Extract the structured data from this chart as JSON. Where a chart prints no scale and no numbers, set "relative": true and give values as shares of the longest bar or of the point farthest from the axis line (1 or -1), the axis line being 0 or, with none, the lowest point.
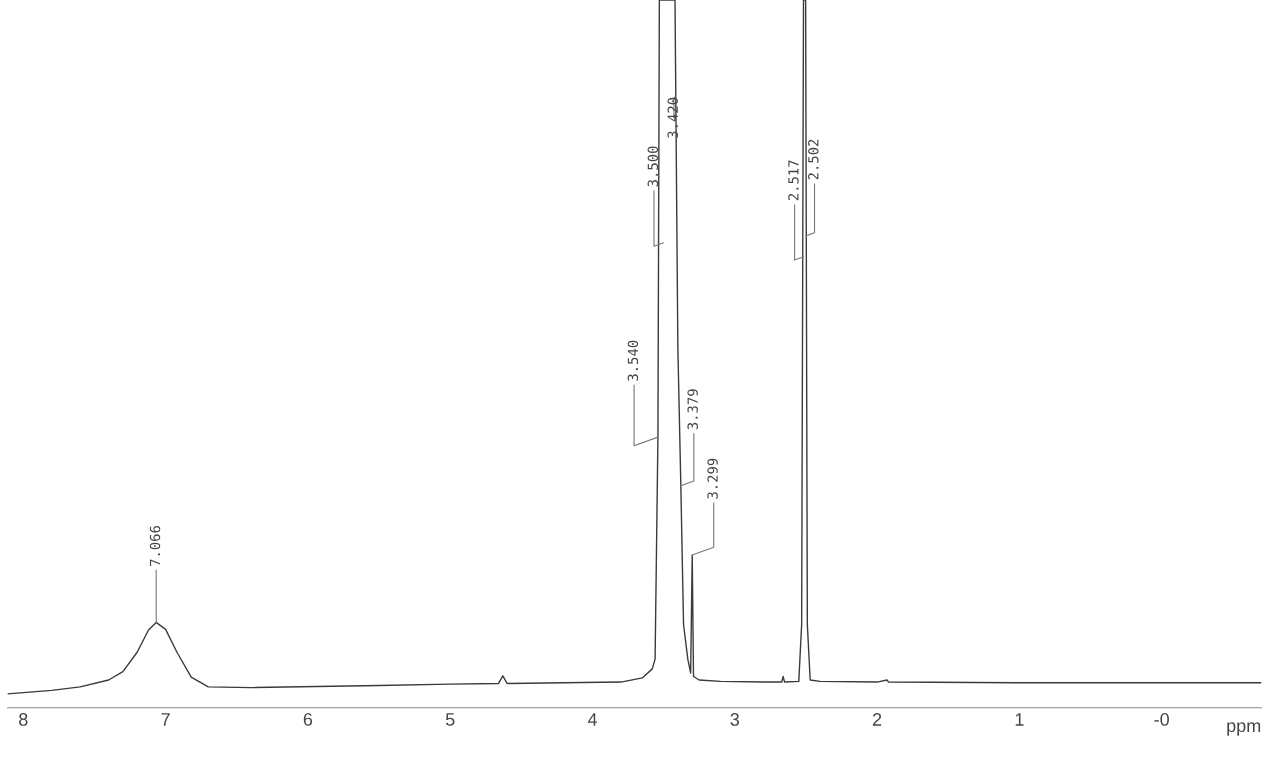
{
  "chart_data": {
    "type": "line",
    "relative": true,
    "xlabel": "ppm",
    "xlim": [
      8.11,
      -0.7
    ],
    "xticks": [
      8,
      7,
      6,
      5,
      4,
      3,
      2,
      1,
      {
        "value": 0,
        "label": "-0"
      }
    ],
    "grid": false,
    "marker": "none",
    "line_style": "solid",
    "series": [
      {
        "color": "#3a3a3a",
        "x": [
          8.11,
          7.8,
          7.6,
          7.4,
          7.3,
          7.2,
          7.12,
          7.066,
          7.0,
          6.92,
          6.82,
          6.7,
          6.4,
          5.5,
          5.0,
          4.66,
          4.63,
          4.6,
          4.2,
          3.8,
          3.65,
          3.58,
          3.56,
          3.54,
          3.53,
          3.5,
          3.46,
          3.43,
          3.42,
          3.4,
          3.379,
          3.36,
          3.33,
          3.31,
          3.299,
          3.29,
          3.25,
          3.1,
          2.8,
          2.67,
          2.66,
          2.65,
          2.55,
          2.53,
          2.517,
          2.502,
          2.49,
          2.47,
          2.4,
          2.0,
          1.93,
          1.92,
          1.0,
          0.0,
          -0.7
        ],
        "values": [
          0.0,
          0.005,
          0.01,
          0.02,
          0.032,
          0.06,
          0.092,
          0.103,
          0.093,
          0.06,
          0.024,
          0.01,
          0.009,
          0.012,
          0.014,
          0.015,
          0.026,
          0.015,
          0.016,
          0.017,
          0.023,
          0.036,
          0.05,
          0.37,
          1.0,
          1.0,
          1.0,
          1.0,
          1.0,
          0.5,
          0.3,
          0.1,
          0.05,
          0.03,
          0.2,
          0.025,
          0.02,
          0.018,
          0.017,
          0.017,
          0.025,
          0.017,
          0.018,
          0.1,
          1.0,
          1.0,
          0.1,
          0.02,
          0.018,
          0.017,
          0.02,
          0.017,
          0.016,
          0.016,
          0.016
        ]
      }
    ],
    "annotations": [
      {
        "text": "7.066",
        "x": 7.066,
        "y": 0.103
      },
      {
        "text": "3.540",
        "x": 3.54,
        "y": 0.37
      },
      {
        "text": "3.500",
        "x": 3.5,
        "y": 0.65
      },
      {
        "text": "3.420",
        "x": 3.42,
        "y": 0.86
      },
      {
        "text": "3.379",
        "x": 3.379,
        "y": 0.3
      },
      {
        "text": "3.299",
        "x": 3.299,
        "y": 0.2
      },
      {
        "text": "2.517",
        "x": 2.517,
        "y": 0.63
      },
      {
        "text": "2.502",
        "x": 2.502,
        "y": 0.66
      }
    ]
  }
}
